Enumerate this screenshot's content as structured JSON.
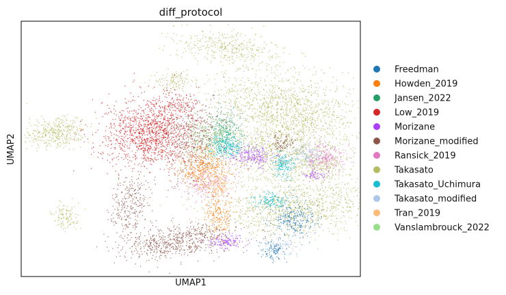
{
  "chart_data": {
    "type": "scatter",
    "title": "diff_protocol",
    "xlabel": "UMAP1",
    "ylabel": "UMAP2",
    "grid": false,
    "ticks": false,
    "legend_position": "right",
    "series": [
      {
        "name": "Freedman",
        "color": "#1f77b4"
      },
      {
        "name": "Howden_2019",
        "color": "#ff7f0e"
      },
      {
        "name": "Jansen_2022",
        "color": "#279e68"
      },
      {
        "name": "Low_2019",
        "color": "#d62728"
      },
      {
        "name": "Morizane",
        "color": "#aa40fc"
      },
      {
        "name": "Morizane_modified",
        "color": "#8c564b"
      },
      {
        "name": "Ransick_2019",
        "color": "#e377c2"
      },
      {
        "name": "Takasato",
        "color": "#b5bd61"
      },
      {
        "name": "Takasato_Uchimura",
        "color": "#17becf"
      },
      {
        "name": "Takasato_modified",
        "color": "#aec7e8"
      },
      {
        "name": "Tran_2019",
        "color": "#ffbb78"
      },
      {
        "name": "Vanslambrouck_2022",
        "color": "#98df8a"
      }
    ]
  }
}
